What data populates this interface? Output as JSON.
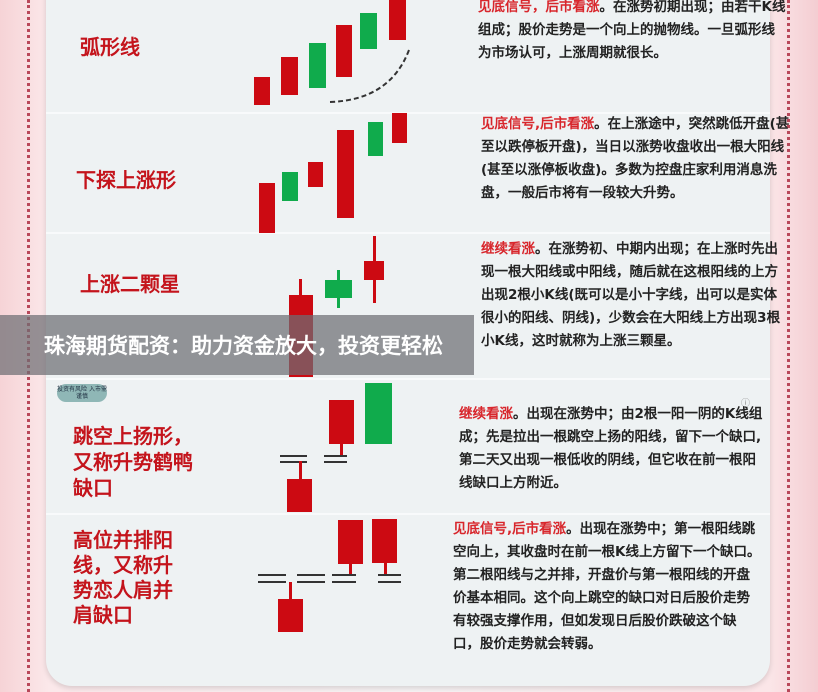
{
  "patterns": [
    {
      "name": "弧形线",
      "signal": "见底信号，后市看涨",
      "text": "。在涨势初期出现；由若干K线组成；股价走势是一个向上的抛物线。一旦弧形线为市场认可，上涨周期就很长。"
    },
    {
      "name": "下探上涨形",
      "signal": "见底信号,后市看涨",
      "text": "。在上涨途中，突然跳低开盘(甚至以跌停板开盘)，当日以涨势收盘收出一根大阳线(甚至以涨停板收盘)。多数为控盘庄家利用消息洗盘，一般后市将有一段较大升势。"
    },
    {
      "name": "上涨二颗星",
      "signal": "继续看涨",
      "text": "。在涨势初、中期内出现；在上涨时先出现一根大阳线或中阳线，随后就在这根阳线的上方出现2根小K线(既可以是小十字线，出可以是实体很小的阳线、阴线)，少数会在大阳线上方出现3根小K线，这时就称为上涨三颗星。"
    },
    {
      "name": "跳空上扬形，又称升势鹤鸭缺口",
      "signal": "继续看涨",
      "text": "。出现在涨势中；由2根一阳一阴的K线组成；先是拉出一根跳空上扬的阳线，留下一个缺口,第二天又出现一根低收的阴线，但它收在前一根阳线缺口上方附近。"
    },
    {
      "name": "高位并排阳线，又称升势恋人肩并肩缺口",
      "signal": "见底信号,后市看涨",
      "text": "。出现在涨势中；第一根阳线跳空向上，其收盘时在前一根K线上方留下一个缺口。第二根阳线与之并排，开盘价与第一根阳线的开盘价基本相同。这个向上跳空的缺口对日后股价走势有较强支撑作用，但如发现日后股价跌破这个缺口，股价走势就会转弱。"
    }
  ],
  "watermark_badge": "投资有风险 入市需谨慎",
  "banner": "珠海期货配资：助力资金放大，投资更轻松",
  "colors": {
    "bull_candle": "#cc0a12",
    "bear_candle": "#10ab4c",
    "label": "#c4141c",
    "highlight": "#d8262c"
  }
}
